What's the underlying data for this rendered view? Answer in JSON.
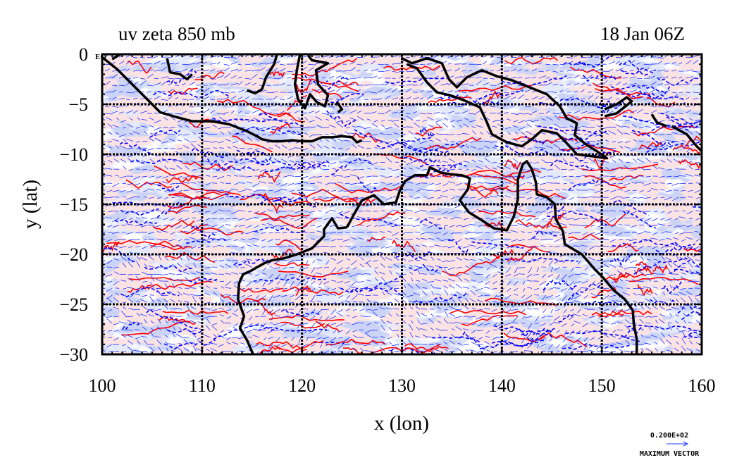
{
  "chart_data": {
    "type": "map",
    "title_left": "uv zeta 850 mb",
    "title_right": "18 Jan 06Z",
    "xlabel": "x (lon)",
    "ylabel": "y (lat)",
    "xlim": [
      100,
      160
    ],
    "ylim": [
      -30,
      0
    ],
    "x_ticks": [
      {
        "value": 100,
        "label": "100"
      },
      {
        "value": 110,
        "label": "110"
      },
      {
        "value": 120,
        "label": "120"
      },
      {
        "value": 130,
        "label": "130"
      },
      {
        "value": 140,
        "label": "140"
      },
      {
        "value": 150,
        "label": "150"
      },
      {
        "value": 160,
        "label": "160"
      }
    ],
    "y_ticks": [
      {
        "value": 0,
        "label": "0"
      },
      {
        "value": -5,
        "label": "−5"
      },
      {
        "value": -10,
        "label": "−10"
      },
      {
        "value": -15,
        "label": "−15"
      },
      {
        "value": -20,
        "label": "−20"
      },
      {
        "value": -25,
        "label": "−25"
      },
      {
        "value": -30,
        "label": "−30"
      }
    ],
    "eq_label": "EQ",
    "grid": true,
    "colors": {
      "positive_fill": "#f6c4c4",
      "positive_line": "#ff0000",
      "negative_fill": "#9aa8ee",
      "negative_light_fill": "#c8d0f5",
      "negative_line": "#0000ff",
      "vector": "#2233ff",
      "coast": "#000000"
    },
    "vector_legend": {
      "magnitude": "0.200E+02",
      "label": "MAXIMUM VECTOR"
    },
    "coastlines": [
      [
        [
          100,
          -0.3
        ],
        [
          101.5,
          -1.5
        ],
        [
          103,
          -3
        ],
        [
          104.5,
          -4.5
        ],
        [
          105.8,
          -5.8
        ],
        [
          107.5,
          -6.3
        ],
        [
          109,
          -6.7
        ],
        [
          111,
          -6.7
        ],
        [
          112.7,
          -7
        ],
        [
          114.5,
          -7.7
        ],
        [
          115.5,
          -8.2
        ],
        [
          116,
          -8.5
        ],
        [
          117,
          -8.7
        ],
        [
          118,
          -8.7
        ],
        [
          119,
          -8.6
        ],
        [
          120,
          -8.7
        ],
        [
          121,
          -8.7
        ],
        [
          122,
          -8.3
        ],
        [
          123,
          -8.3
        ],
        [
          124,
          -8.2
        ],
        [
          125,
          -8.3
        ],
        [
          125.5,
          -8.8
        ],
        [
          126,
          -8.6
        ]
      ],
      [
        [
          101,
          -0.5
        ],
        [
          101.8,
          0
        ]
      ],
      [
        [
          106.5,
          -0.4
        ],
        [
          106.8,
          -1.8
        ],
        [
          107.8,
          -2
        ],
        [
          108.5,
          -2.5
        ],
        [
          109,
          -2
        ]
      ],
      [
        [
          117.5,
          0
        ],
        [
          117.2,
          -1
        ],
        [
          116.4,
          -2.3
        ],
        [
          116,
          -3.5
        ],
        [
          115.3,
          -3.9
        ],
        [
          114.5,
          -3.6
        ]
      ],
      [
        [
          119.8,
          0
        ],
        [
          119.5,
          -1.5
        ],
        [
          119.3,
          -3
        ],
        [
          119.6,
          -4.5
        ],
        [
          120.3,
          -5.4
        ],
        [
          120.8,
          -4
        ],
        [
          121.5,
          -4.8
        ],
        [
          122.3,
          -5.2
        ],
        [
          122.6,
          -4.1
        ],
        [
          121.6,
          -3
        ],
        [
          121.4,
          -1.6
        ],
        [
          122.6,
          -0.9
        ],
        [
          121,
          -0.6
        ],
        [
          120.6,
          -0.1
        ]
      ],
      [
        [
          123.5,
          -4.8
        ],
        [
          124,
          -5.5
        ],
        [
          123.6,
          -5.8
        ]
      ],
      [
        [
          130,
          -0.4
        ],
        [
          131,
          -0.9
        ],
        [
          132.5,
          -0.4
        ],
        [
          134,
          -0.9
        ],
        [
          134.7,
          -2.5
        ],
        [
          135.5,
          -3.3
        ],
        [
          136.5,
          -2.3
        ],
        [
          138,
          -1.6
        ],
        [
          139.5,
          -2.2
        ],
        [
          141,
          -2.6
        ],
        [
          143,
          -3.4
        ],
        [
          144.5,
          -4
        ],
        [
          145.8,
          -5.2
        ],
        [
          146.5,
          -6.4
        ],
        [
          147.5,
          -6.9
        ],
        [
          147.3,
          -8.1
        ],
        [
          148.4,
          -9
        ],
        [
          149.5,
          -9.7
        ],
        [
          150.5,
          -10.4
        ],
        [
          149,
          -10.2
        ],
        [
          147.5,
          -10
        ],
        [
          146.5,
          -8.9
        ],
        [
          145.5,
          -7.9
        ],
        [
          144,
          -7.6
        ],
        [
          143,
          -8.5
        ],
        [
          142,
          -9.2
        ],
        [
          140.5,
          -8.8
        ],
        [
          139,
          -8
        ],
        [
          138.5,
          -6.8
        ],
        [
          137.8,
          -5.3
        ],
        [
          136.2,
          -4.6
        ],
        [
          134.8,
          -4.1
        ],
        [
          133.5,
          -3.8
        ],
        [
          132.5,
          -2.8
        ],
        [
          131.5,
          -1.4
        ],
        [
          130.5,
          -1
        ]
      ],
      [
        [
          150.3,
          -5.5
        ],
        [
          151.5,
          -5
        ],
        [
          152.5,
          -4.3
        ],
        [
          153,
          -4.7
        ],
        [
          151.5,
          -5.9
        ],
        [
          150.3,
          -6.2
        ]
      ],
      [
        [
          155,
          -6
        ],
        [
          155.5,
          -6.8
        ],
        [
          156.5,
          -7.2
        ]
      ],
      [
        [
          157,
          -7.2
        ],
        [
          158.5,
          -8
        ],
        [
          159.5,
          -9.2
        ],
        [
          160,
          -9.7
        ]
      ],
      [
        [
          124.5,
          -17.3
        ],
        [
          125.2,
          -16
        ],
        [
          126,
          -14.6
        ],
        [
          127.2,
          -14.1
        ],
        [
          128.2,
          -15
        ],
        [
          129.4,
          -14.8
        ],
        [
          129.8,
          -13.6
        ],
        [
          130.3,
          -12.7
        ],
        [
          131.3,
          -12.1
        ],
        [
          132.5,
          -12.1
        ],
        [
          132.8,
          -11.3
        ],
        [
          133.8,
          -11.8
        ],
        [
          134.8,
          -12
        ],
        [
          136,
          -12.1
        ],
        [
          136.8,
          -12.4
        ],
        [
          136.6,
          -13.5
        ],
        [
          135.8,
          -14.6
        ],
        [
          136.7,
          -15.8
        ],
        [
          138,
          -16.6
        ],
        [
          139.2,
          -17.4
        ],
        [
          140.5,
          -17.6
        ],
        [
          141.2,
          -16.2
        ],
        [
          141.6,
          -14.5
        ],
        [
          141.6,
          -12.5
        ],
        [
          142.1,
          -11
        ],
        [
          142.5,
          -10.7
        ],
        [
          143,
          -11.5
        ],
        [
          143.4,
          -12.8
        ],
        [
          143.5,
          -14
        ],
        [
          144.5,
          -14.3
        ],
        [
          145.3,
          -15
        ],
        [
          145.4,
          -16.5
        ],
        [
          146.1,
          -17.7
        ],
        [
          146.3,
          -19
        ],
        [
          148,
          -20
        ],
        [
          149.3,
          -21.5
        ],
        [
          150.1,
          -22.3
        ],
        [
          151.2,
          -23.6
        ],
        [
          152.3,
          -24.5
        ],
        [
          153.1,
          -25.6
        ],
        [
          153.2,
          -27
        ],
        [
          153.5,
          -28.5
        ],
        [
          153.5,
          -30
        ]
      ],
      [
        [
          124.5,
          -17.3
        ],
        [
          123.6,
          -17.4
        ],
        [
          123,
          -16.4
        ],
        [
          122.2,
          -17.5
        ],
        [
          122.2,
          -18.2
        ],
        [
          121,
          -19.4
        ],
        [
          119.5,
          -20
        ],
        [
          118.2,
          -20.4
        ],
        [
          117,
          -20.6
        ],
        [
          116.2,
          -20.9
        ],
        [
          114.8,
          -21.7
        ],
        [
          114.1,
          -22
        ],
        [
          113.7,
          -22.9
        ],
        [
          113.6,
          -24.5
        ],
        [
          114.2,
          -26.2
        ],
        [
          113.8,
          -27.4
        ],
        [
          114.5,
          -28.6
        ],
        [
          114.9,
          -29.5
        ],
        [
          115.1,
          -30
        ]
      ]
    ]
  }
}
